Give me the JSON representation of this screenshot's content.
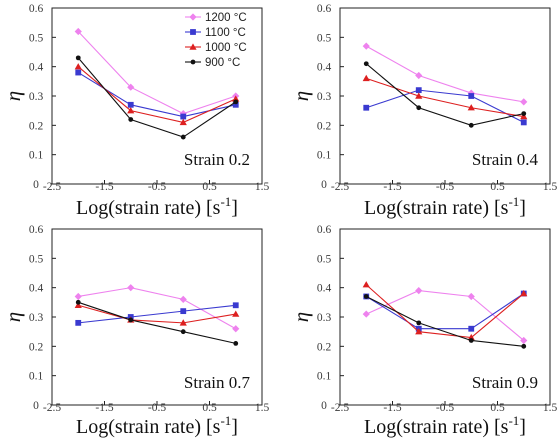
{
  "chart_data": [
    {
      "type": "line",
      "annotation": "Strain 0.2",
      "xlabel": "Log(strain rate) [s",
      "xlabel_sup": "-1",
      "xlabel_end": "]",
      "ylabel": "η",
      "xlim": [
        -2.5,
        1.5
      ],
      "ylim": [
        0,
        0.6
      ],
      "xticks": [
        "-2.5",
        "-1.5",
        "-0.5",
        "0.5",
        "1.5"
      ],
      "yticks": [
        "0",
        "0.1",
        "0.2",
        "0.3",
        "0.4",
        "0.5",
        "0.6"
      ],
      "legend_position": "top-right",
      "x": [
        -2,
        -1,
        0,
        1
      ],
      "series": [
        {
          "name": "1200 °C",
          "color": "#ee82ee",
          "marker": "diamond",
          "values": [
            0.52,
            0.33,
            0.24,
            0.3
          ]
        },
        {
          "name": "1100 °C",
          "color": "#3a3ad0",
          "marker": "square",
          "values": [
            0.38,
            0.27,
            0.23,
            0.27
          ]
        },
        {
          "name": "1000 °C",
          "color": "#dd2020",
          "marker": "triangle",
          "values": [
            0.4,
            0.25,
            0.21,
            0.29
          ]
        },
        {
          "name": "900 °C",
          "color": "#111111",
          "marker": "circle",
          "values": [
            0.43,
            0.22,
            0.16,
            0.28
          ]
        }
      ]
    },
    {
      "type": "line",
      "annotation": "Strain 0.4",
      "xlabel": "Log(strain rate) [s",
      "xlabel_sup": "-1",
      "xlabel_end": "]",
      "ylabel": "η",
      "xlim": [
        -2.5,
        1.5
      ],
      "ylim": [
        0,
        0.6
      ],
      "xticks": [
        "-2.5",
        "-1.5",
        "-0.5",
        "0.5",
        "1.5"
      ],
      "yticks": [
        "0",
        "0.1",
        "0.2",
        "0.3",
        "0.4",
        "0.5",
        "0.6"
      ],
      "x": [
        -2,
        -1,
        0,
        1
      ],
      "series": [
        {
          "name": "1200 °C",
          "color": "#ee82ee",
          "marker": "diamond",
          "values": [
            0.47,
            0.37,
            0.31,
            0.28
          ]
        },
        {
          "name": "1100 °C",
          "color": "#3a3ad0",
          "marker": "square",
          "values": [
            0.26,
            0.32,
            0.3,
            0.21
          ]
        },
        {
          "name": "1000 °C",
          "color": "#dd2020",
          "marker": "triangle",
          "values": [
            0.36,
            0.3,
            0.26,
            0.23
          ]
        },
        {
          "name": "900 °C",
          "color": "#111111",
          "marker": "circle",
          "values": [
            0.41,
            0.26,
            0.2,
            0.24
          ]
        }
      ]
    },
    {
      "type": "line",
      "annotation": "Strain 0.7",
      "xlabel": "Log(strain rate) [s",
      "xlabel_sup": "-1",
      "xlabel_end": "]",
      "ylabel": "η",
      "xlim": [
        -2.5,
        1.5
      ],
      "ylim": [
        0,
        0.6
      ],
      "xticks": [
        "-2.5",
        "-1.5",
        "-0.5",
        "0.5",
        "1.5"
      ],
      "yticks": [
        "0",
        "0.1",
        "0.2",
        "0.3",
        "0.4",
        "0.5",
        "0.6"
      ],
      "x": [
        -2,
        -1,
        0,
        1
      ],
      "series": [
        {
          "name": "1200 °C",
          "color": "#ee82ee",
          "marker": "diamond",
          "values": [
            0.37,
            0.4,
            0.36,
            0.26
          ]
        },
        {
          "name": "1100 °C",
          "color": "#3a3ad0",
          "marker": "square",
          "values": [
            0.28,
            0.3,
            0.32,
            0.34
          ]
        },
        {
          "name": "1000 °C",
          "color": "#dd2020",
          "marker": "triangle",
          "values": [
            0.34,
            0.29,
            0.28,
            0.31
          ]
        },
        {
          "name": "900 °C",
          "color": "#111111",
          "marker": "circle",
          "values": [
            0.35,
            0.29,
            0.25,
            0.21
          ]
        }
      ]
    },
    {
      "type": "line",
      "annotation": "Strain 0.9",
      "xlabel": "Log(strain rate) [s",
      "xlabel_sup": "-1",
      "xlabel_end": "]",
      "ylabel": "η",
      "xlim": [
        -2.5,
        1.5
      ],
      "ylim": [
        0,
        0.6
      ],
      "xticks": [
        "-2.5",
        "-1.5",
        "-0.5",
        "0.5",
        "1.5"
      ],
      "yticks": [
        "0",
        "0.1",
        "0.2",
        "0.3",
        "0.4",
        "0.5",
        "0.6"
      ],
      "x": [
        -2,
        -1,
        0,
        1
      ],
      "series": [
        {
          "name": "1200 °C",
          "color": "#ee82ee",
          "marker": "diamond",
          "values": [
            0.31,
            0.39,
            0.37,
            0.22
          ]
        },
        {
          "name": "1100 °C",
          "color": "#3a3ad0",
          "marker": "square",
          "values": [
            0.37,
            0.26,
            0.26,
            0.38
          ]
        },
        {
          "name": "1000 °C",
          "color": "#dd2020",
          "marker": "triangle",
          "values": [
            0.41,
            0.25,
            0.23,
            0.38
          ]
        },
        {
          "name": "900 °C",
          "color": "#111111",
          "marker": "circle",
          "values": [
            0.37,
            0.28,
            0.22,
            0.2
          ]
        }
      ]
    }
  ]
}
